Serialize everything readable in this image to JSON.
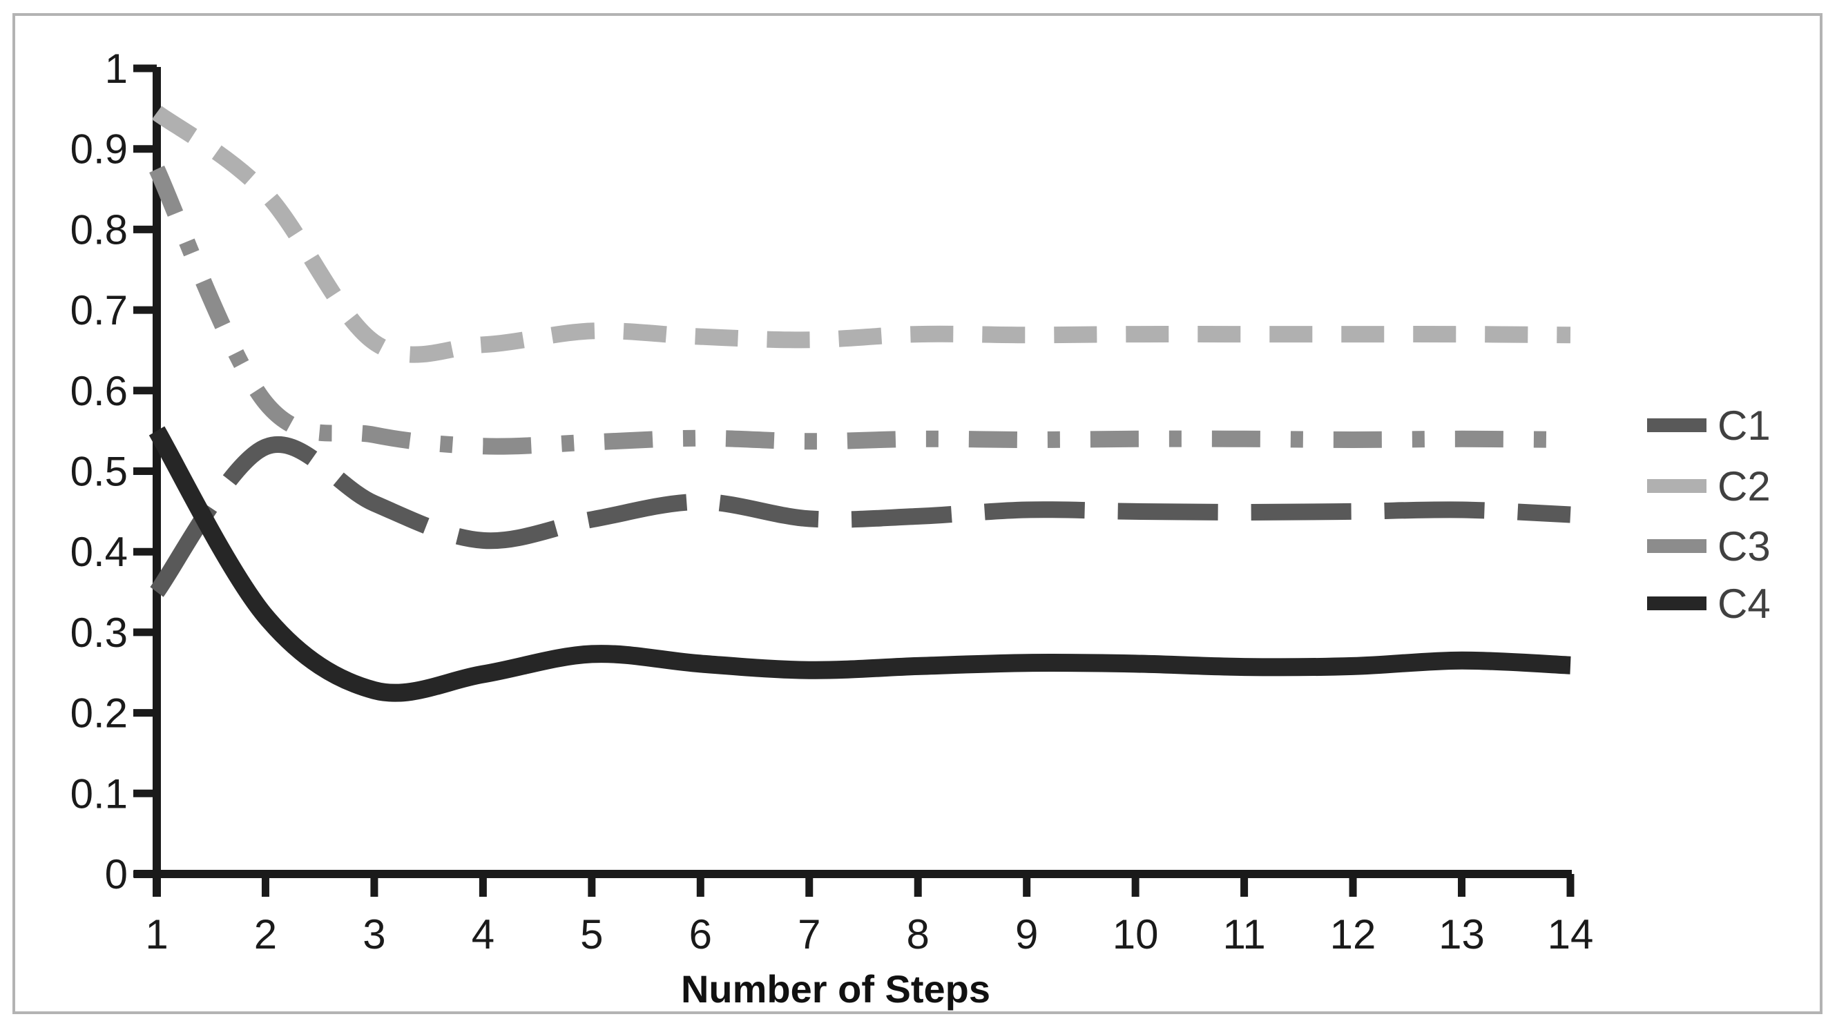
{
  "chart_data": {
    "type": "line",
    "title": "",
    "xlabel": "Number of Steps",
    "ylabel": "",
    "x": [
      1,
      2,
      3,
      4,
      5,
      6,
      7,
      8,
      9,
      10,
      11,
      12,
      13,
      14
    ],
    "x_tick_labels": [
      "1",
      "2",
      "3",
      "4",
      "5",
      "6",
      "7",
      "8",
      "9",
      "10",
      "11",
      "12",
      "13",
      "14"
    ],
    "y_tick_labels": [
      "0",
      "0.1",
      "0.2",
      "0.3",
      "0.4",
      "0.5",
      "0.6",
      "0.7",
      "0.8",
      "0.9",
      "1"
    ],
    "ylim": [
      0,
      1
    ],
    "xlim": [
      1,
      14
    ],
    "grid": false,
    "legend_position": "right",
    "series": [
      {
        "name": "C1",
        "color": "#595959",
        "dash": [
          145,
          48
        ],
        "line_width": 24,
        "values": [
          0.35,
          0.53,
          0.46,
          0.414,
          0.44,
          0.462,
          0.441,
          0.444,
          0.452,
          0.45,
          0.449,
          0.45,
          0.452,
          0.446
        ]
      },
      {
        "name": "C2",
        "color": "#b0b0b0",
        "dash": [
          62,
          42
        ],
        "line_width": 24,
        "values": [
          0.945,
          0.845,
          0.66,
          0.657,
          0.674,
          0.667,
          0.663,
          0.67,
          0.669,
          0.67,
          0.67,
          0.67,
          0.67,
          0.669
        ]
      },
      {
        "name": "C3",
        "color": "#8c8c8c",
        "dash": [
          70,
          44,
          18,
          44
        ],
        "line_width": 24,
        "values": [
          0.875,
          0.585,
          0.545,
          0.531,
          0.536,
          0.541,
          0.537,
          0.54,
          0.539,
          0.54,
          0.54,
          0.539,
          0.54,
          0.539
        ]
      },
      {
        "name": "C4",
        "color": "#262626",
        "dash": [],
        "line_width": 26,
        "values": [
          0.55,
          0.32,
          0.228,
          0.248,
          0.273,
          0.261,
          0.253,
          0.258,
          0.262,
          0.261,
          0.257,
          0.258,
          0.265,
          0.259
        ]
      }
    ],
    "axis_color": "#1a1a1a",
    "frame_color": "#b3b3b3"
  }
}
